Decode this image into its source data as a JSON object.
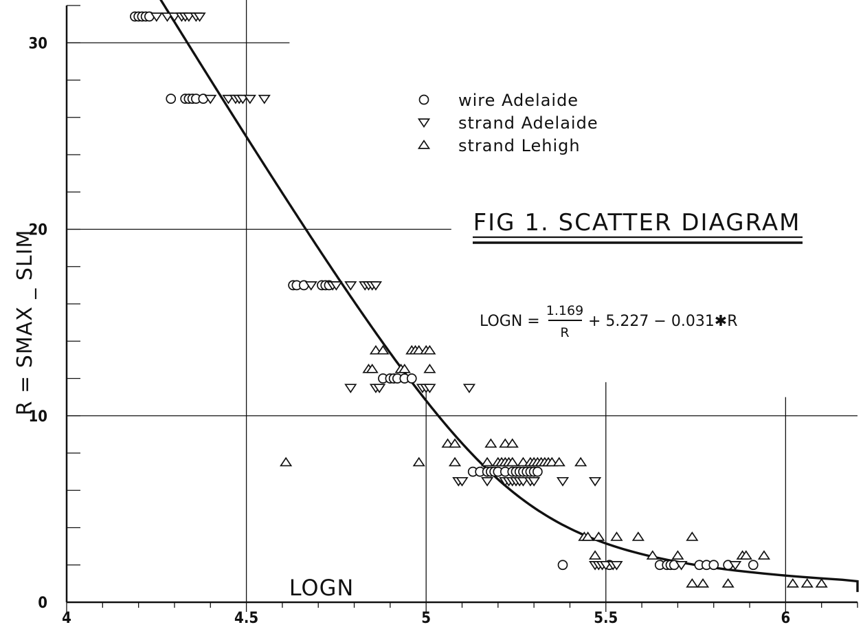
{
  "chart_data": {
    "type": "scatter",
    "title": "FIG 1. SCATTER DIAGRAM",
    "xlabel": "LOGN",
    "ylabel": "R = SMAX _ SLIM",
    "xlim": [
      4.0,
      6.2
    ],
    "ylim": [
      0,
      32
    ],
    "x_ticks": [
      4,
      4.5,
      5,
      5.5,
      6
    ],
    "x_tick_labels": [
      "4",
      "4.5",
      "5",
      "5.5",
      "6"
    ],
    "y_ticks": [
      0,
      10,
      20,
      30
    ],
    "y_tick_labels": [
      "0",
      "10",
      "20",
      "30"
    ],
    "legend": {
      "placement": "top-center",
      "entries": [
        {
          "marker": "circle",
          "label": "wire  Adelaide"
        },
        {
          "marker": "triangle-down",
          "label": "strand  Adelaide"
        },
        {
          "marker": "triangle-up",
          "label": "strand  Lehigh"
        }
      ]
    },
    "equation": {
      "lhs": "LOGN =",
      "numerator": "1.169",
      "denominator": "R",
      "rest": "+ 5.227 − 0.031✱R"
    },
    "fit": {
      "a": 1.169,
      "b": 5.227,
      "c": 0.031,
      "r_range": [
        0.55,
        33.4
      ]
    },
    "series": [
      {
        "marker": "circle",
        "points": [
          [
            4.19,
            32
          ],
          [
            4.2,
            32
          ],
          [
            4.21,
            32
          ],
          [
            4.22,
            32
          ],
          [
            4.23,
            32
          ],
          [
            4.29,
            27
          ],
          [
            4.33,
            27
          ],
          [
            4.34,
            27
          ],
          [
            4.35,
            27
          ],
          [
            4.36,
            27
          ],
          [
            4.38,
            27
          ],
          [
            4.63,
            17
          ],
          [
            4.64,
            17
          ],
          [
            4.66,
            17
          ],
          [
            4.71,
            17
          ],
          [
            4.72,
            17
          ],
          [
            4.73,
            17
          ],
          [
            4.88,
            12
          ],
          [
            4.9,
            12
          ],
          [
            4.91,
            12
          ],
          [
            4.92,
            12
          ],
          [
            4.94,
            12
          ],
          [
            4.96,
            12
          ],
          [
            5.13,
            7
          ],
          [
            5.15,
            7
          ],
          [
            5.17,
            7
          ],
          [
            5.18,
            7
          ],
          [
            5.19,
            7
          ],
          [
            5.2,
            7
          ],
          [
            5.22,
            7
          ],
          [
            5.24,
            7
          ],
          [
            5.25,
            7
          ],
          [
            5.26,
            7
          ],
          [
            5.27,
            7
          ],
          [
            5.28,
            7
          ],
          [
            5.29,
            7
          ],
          [
            5.3,
            7
          ],
          [
            5.31,
            7
          ],
          [
            5.38,
            2
          ],
          [
            5.51,
            2
          ],
          [
            5.65,
            2
          ],
          [
            5.67,
            2
          ],
          [
            5.68,
            2
          ],
          [
            5.69,
            2
          ],
          [
            5.76,
            2
          ],
          [
            5.78,
            2
          ],
          [
            5.8,
            2
          ],
          [
            5.84,
            2
          ],
          [
            5.91,
            2
          ]
        ]
      },
      {
        "marker": "triangle-down",
        "points": [
          [
            4.25,
            32
          ],
          [
            4.28,
            32
          ],
          [
            4.3,
            32
          ],
          [
            4.32,
            32
          ],
          [
            4.33,
            32
          ],
          [
            4.34,
            32
          ],
          [
            4.36,
            32
          ],
          [
            4.37,
            32
          ],
          [
            4.4,
            27
          ],
          [
            4.45,
            27
          ],
          [
            4.47,
            27
          ],
          [
            4.48,
            27
          ],
          [
            4.49,
            27
          ],
          [
            4.51,
            27
          ],
          [
            4.55,
            27
          ],
          [
            4.68,
            17
          ],
          [
            4.74,
            17
          ],
          [
            4.75,
            17
          ],
          [
            4.79,
            17
          ],
          [
            4.83,
            17
          ],
          [
            4.84,
            17
          ],
          [
            4.85,
            17
          ],
          [
            4.86,
            17
          ],
          [
            4.79,
            11.5
          ],
          [
            4.86,
            11.5
          ],
          [
            4.87,
            11.5
          ],
          [
            4.99,
            11.5
          ],
          [
            5.0,
            11.5
          ],
          [
            5.01,
            11.5
          ],
          [
            5.12,
            11.5
          ],
          [
            5.09,
            6.5
          ],
          [
            5.1,
            6.5
          ],
          [
            5.17,
            6.5
          ],
          [
            5.22,
            6.5
          ],
          [
            5.23,
            6.5
          ],
          [
            5.24,
            6.5
          ],
          [
            5.25,
            6.5
          ],
          [
            5.26,
            6.5
          ],
          [
            5.27,
            6.5
          ],
          [
            5.29,
            6.5
          ],
          [
            5.3,
            6.5
          ],
          [
            5.38,
            6.5
          ],
          [
            5.47,
            6.5
          ],
          [
            5.47,
            2
          ],
          [
            5.48,
            2
          ],
          [
            5.49,
            2
          ],
          [
            5.5,
            2
          ],
          [
            5.52,
            2
          ],
          [
            5.53,
            2
          ],
          [
            5.71,
            2
          ],
          [
            5.86,
            2
          ]
        ]
      },
      {
        "marker": "triangle-up",
        "points": [
          [
            4.61,
            7.5
          ],
          [
            4.84,
            12.5
          ],
          [
            4.85,
            12.5
          ],
          [
            4.86,
            13.5
          ],
          [
            4.88,
            13.5
          ],
          [
            4.93,
            12.5
          ],
          [
            4.94,
            12.5
          ],
          [
            4.96,
            13.5
          ],
          [
            4.97,
            13.5
          ],
          [
            4.98,
            13.5
          ],
          [
            5.0,
            13.5
          ],
          [
            5.01,
            13.5
          ],
          [
            5.01,
            12.5
          ],
          [
            4.98,
            7.5
          ],
          [
            5.06,
            8.5
          ],
          [
            5.08,
            8.5
          ],
          [
            5.08,
            7.5
          ],
          [
            5.17,
            7.5
          ],
          [
            5.18,
            8.5
          ],
          [
            5.2,
            7.5
          ],
          [
            5.21,
            7.5
          ],
          [
            5.22,
            7.5
          ],
          [
            5.22,
            8.5
          ],
          [
            5.23,
            7.5
          ],
          [
            5.24,
            7.5
          ],
          [
            5.24,
            8.5
          ],
          [
            5.27,
            7.5
          ],
          [
            5.29,
            7.5
          ],
          [
            5.3,
            7.5
          ],
          [
            5.31,
            7.5
          ],
          [
            5.32,
            7.5
          ],
          [
            5.33,
            7.5
          ],
          [
            5.34,
            7.5
          ],
          [
            5.35,
            7.5
          ],
          [
            5.37,
            7.5
          ],
          [
            5.43,
            7.5
          ],
          [
            5.44,
            3.5
          ],
          [
            5.45,
            3.5
          ],
          [
            5.47,
            2.5
          ],
          [
            5.48,
            3.5
          ],
          [
            5.53,
            3.5
          ],
          [
            5.59,
            3.5
          ],
          [
            5.63,
            2.5
          ],
          [
            5.7,
            2.5
          ],
          [
            5.74,
            1
          ],
          [
            5.74,
            3.5
          ],
          [
            5.77,
            1
          ],
          [
            5.84,
            1
          ],
          [
            5.88,
            2.5
          ],
          [
            5.89,
            2.5
          ],
          [
            5.94,
            2.5
          ],
          [
            6.02,
            1
          ],
          [
            6.06,
            1
          ],
          [
            6.1,
            1
          ]
        ]
      }
    ]
  }
}
